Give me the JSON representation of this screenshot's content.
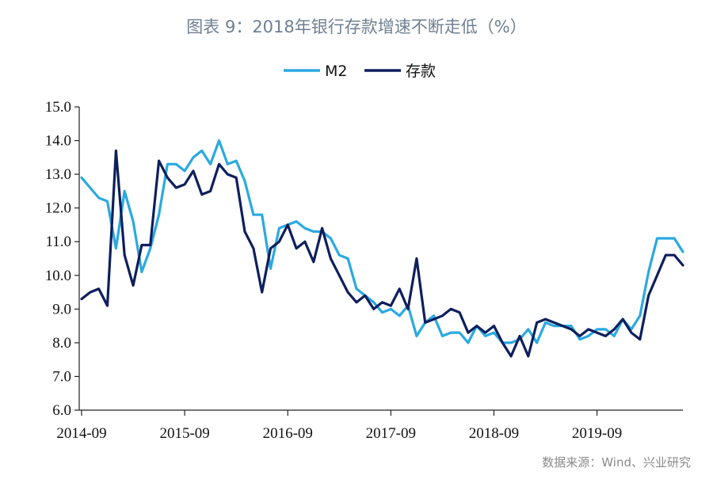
{
  "title": "图表 9：2018年银行存款增速不断走低（%）",
  "source": "数据来源：Wind、兴业研究",
  "chart_data": {
    "type": "line",
    "title": "图表 9：2018年银行存款增速不断走低（%）",
    "xlabel": "",
    "ylabel": "",
    "ylim": [
      6.0,
      15.0
    ],
    "yticks": [
      "6.0",
      "7.0",
      "8.0",
      "9.0",
      "10.0",
      "11.0",
      "12.0",
      "13.0",
      "14.0",
      "15.0"
    ],
    "xtick_labels": [
      "2014-09",
      "2015-09",
      "2016-09",
      "2017-09",
      "2018-09",
      "2019-09"
    ],
    "xtick_index": [
      0,
      12,
      24,
      36,
      48,
      60
    ],
    "x": [
      "2014-09",
      "2014-10",
      "2014-11",
      "2014-12",
      "2015-01",
      "2015-02",
      "2015-03",
      "2015-04",
      "2015-05",
      "2015-06",
      "2015-07",
      "2015-08",
      "2015-09",
      "2015-10",
      "2015-11",
      "2015-12",
      "2016-01",
      "2016-02",
      "2016-03",
      "2016-04",
      "2016-05",
      "2016-06",
      "2016-07",
      "2016-08",
      "2016-09",
      "2016-10",
      "2016-11",
      "2016-12",
      "2017-01",
      "2017-02",
      "2017-03",
      "2017-04",
      "2017-05",
      "2017-06",
      "2017-07",
      "2017-08",
      "2017-09",
      "2017-10",
      "2017-11",
      "2017-12",
      "2018-01",
      "2018-02",
      "2018-03",
      "2018-04",
      "2018-05",
      "2018-06",
      "2018-07",
      "2018-08",
      "2018-09",
      "2018-10",
      "2018-11",
      "2018-12",
      "2019-01",
      "2019-02",
      "2019-03",
      "2019-04",
      "2019-05",
      "2019-06",
      "2019-07",
      "2019-08",
      "2019-09",
      "2019-10",
      "2019-11",
      "2019-12",
      "2020-01",
      "2020-02",
      "2020-03",
      "2020-04",
      "2020-05",
      "2020-06",
      "2020-07"
    ],
    "series": [
      {
        "name": "M2",
        "color": "#2aa9e0",
        "values": [
          12.9,
          12.6,
          12.3,
          12.2,
          10.8,
          12.5,
          11.6,
          10.1,
          10.8,
          11.8,
          13.3,
          13.3,
          13.1,
          13.5,
          13.7,
          13.3,
          14.0,
          13.3,
          13.4,
          12.8,
          11.8,
          11.8,
          10.2,
          11.4,
          11.5,
          11.6,
          11.4,
          11.3,
          11.3,
          11.1,
          10.6,
          10.5,
          9.6,
          9.4,
          9.2,
          8.9,
          9.0,
          8.8,
          9.1,
          8.2,
          8.6,
          8.8,
          8.2,
          8.3,
          8.3,
          8.0,
          8.5,
          8.2,
          8.3,
          8.0,
          8.0,
          8.1,
          8.4,
          8.0,
          8.6,
          8.5,
          8.5,
          8.5,
          8.1,
          8.2,
          8.4,
          8.4,
          8.2,
          8.7,
          8.4,
          8.8,
          10.1,
          11.1,
          11.1,
          11.1,
          10.7
        ]
      },
      {
        "name": "存款",
        "color": "#0e1f5c",
        "values": [
          9.3,
          9.5,
          9.6,
          9.1,
          13.7,
          10.6,
          9.7,
          10.9,
          10.9,
          13.4,
          12.9,
          12.6,
          12.7,
          13.1,
          12.4,
          12.5,
          13.3,
          13.0,
          12.9,
          11.3,
          10.8,
          9.5,
          10.8,
          11.0,
          11.5,
          10.8,
          11.0,
          10.4,
          11.4,
          10.5,
          10.0,
          9.5,
          9.2,
          9.4,
          9.0,
          9.2,
          9.1,
          9.6,
          9.0,
          10.5,
          8.6,
          8.7,
          8.8,
          9.0,
          8.9,
          8.3,
          8.5,
          8.3,
          8.5,
          8.0,
          7.6,
          8.2,
          7.6,
          8.6,
          8.7,
          8.6,
          8.5,
          8.4,
          8.2,
          8.4,
          8.3,
          8.2,
          8.4,
          8.7,
          8.3,
          8.1,
          9.4,
          10.0,
          10.6,
          10.6,
          10.3
        ]
      }
    ]
  }
}
